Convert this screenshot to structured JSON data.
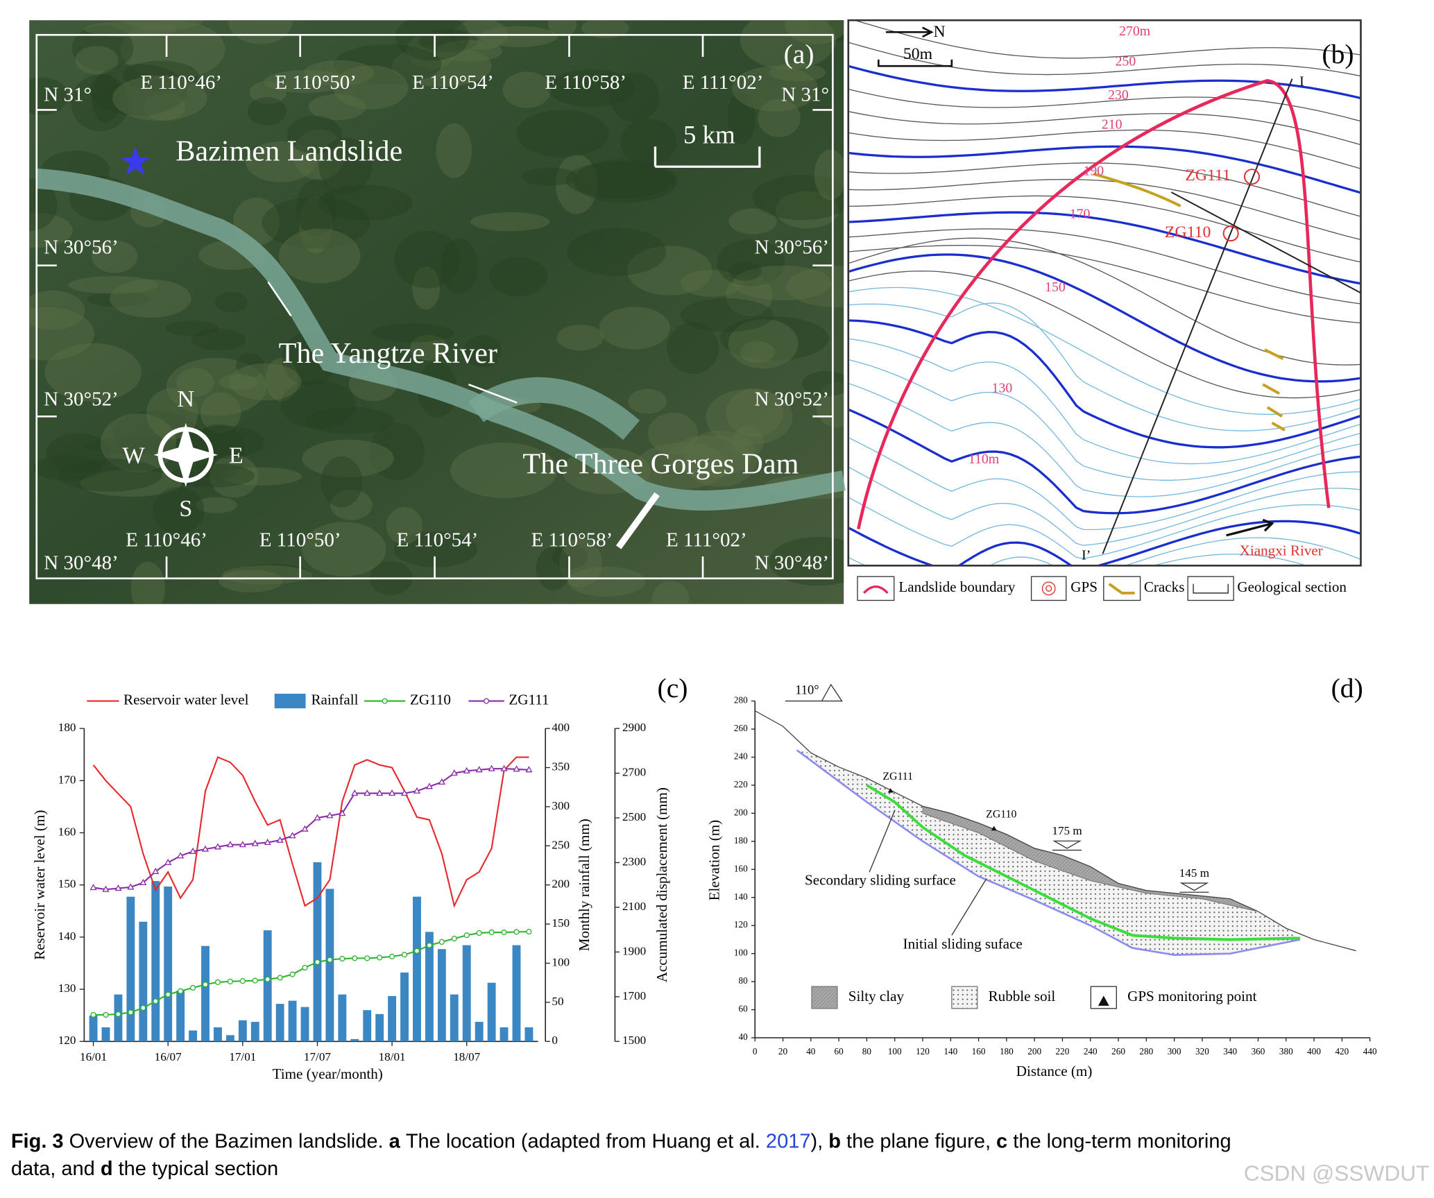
{
  "figure": {
    "a": {
      "label": "(a)",
      "top_lon": [
        "E 110°46’",
        "E 110°50’",
        "E 110°54’",
        "E 110°58’",
        "E 111°02’"
      ],
      "bottom_lon": [
        "E 110°46’",
        "E 110°50’",
        "E 110°54’",
        "E 110°58’",
        "E 111°02’"
      ],
      "left_lat": [
        "N 31°",
        "N 30°56’",
        "N 30°52’",
        "N 30°48’"
      ],
      "right_lat": [
        "N 31°",
        "N 30°56’",
        "N 30°52’",
        "N 30°48’"
      ],
      "scale": "5 km",
      "places": [
        "Bazimen Landslide",
        "The Yangtze River",
        "The Three Gorges Dam"
      ],
      "compass": [
        "N",
        "W",
        "E",
        "S"
      ]
    },
    "b": {
      "label": "(b)",
      "north": "N",
      "scale": "50m",
      "contours": [
        "270m",
        "250",
        "230",
        "210",
        "190",
        "170",
        "150",
        "130",
        "110m"
      ],
      "stations": [
        "ZG111",
        "ZG110"
      ],
      "section": [
        "I",
        "I’"
      ],
      "river": "Xiangxi River",
      "legend": [
        "Landslide boundary",
        "GPS",
        "Cracks",
        "Geological section"
      ]
    },
    "caption": {
      "fig": "Fig. 3",
      "text": "Overview of the Bazimen landslide.",
      "a": "a",
      "a_text": "The location (adapted from Huang et al.",
      "ref": "2017",
      "a_end": "),",
      "b": "b",
      "b_text": "the plane figure,",
      "c": "c",
      "c_text": "the long-term monitoring",
      "line2": "data, and",
      "d": "d",
      "d_text": "the typical section"
    },
    "watermark": "CSDN @SSWDUT"
  },
  "chart_data": [
    {
      "type": "combo",
      "label": "(c)",
      "x_label": "Time (year/month)",
      "y_label": "Reservoir water level (m)",
      "y2_label": "Monthly rainfall (mm)",
      "y3_label": "Accumulated displacement (mm)",
      "categories": [
        "16/01",
        null,
        null,
        null,
        null,
        null,
        "16/07",
        null,
        null,
        null,
        null,
        null,
        "17/01",
        null,
        null,
        null,
        null,
        null,
        "17/07",
        null,
        null,
        null,
        null,
        null,
        "18/01",
        null,
        null,
        null,
        null,
        null,
        "18/07",
        null,
        null,
        null,
        null,
        null
      ],
      "ylim": [
        120,
        180
      ],
      "yticks": [
        120,
        130,
        140,
        150,
        160,
        170,
        180
      ],
      "y2lim": [
        0,
        400
      ],
      "y2ticks": [
        0,
        50,
        100,
        150,
        200,
        250,
        300,
        350,
        400
      ],
      "y3lim": [
        1500,
        2900
      ],
      "y3ticks": [
        1500,
        1700,
        1900,
        2100,
        2300,
        2500,
        2700,
        2900
      ],
      "series": [
        {
          "name": "Reservoir water level",
          "kind": "line",
          "color": "#e8282b",
          "axis": "y",
          "values": [
            173,
            170,
            167.5,
            165,
            156,
            149,
            152.5,
            147.5,
            151,
            168,
            174.5,
            173.5,
            171,
            166,
            161.5,
            162.5,
            154,
            146,
            147.5,
            151,
            166,
            173,
            174,
            173,
            172.5,
            168,
            163,
            162.5,
            156,
            146,
            151,
            152.5,
            157,
            172,
            174.5,
            174.5
          ]
        },
        {
          "name": "Rainfall",
          "kind": "bar",
          "color": "#3a87c4",
          "axis": "y2",
          "values": [
            33,
            18,
            60,
            185,
            153,
            205,
            198,
            65,
            14,
            122,
            18,
            8,
            27,
            25,
            142,
            48,
            52,
            44,
            229,
            195,
            60,
            3,
            40,
            35,
            58,
            88,
            185,
            140,
            118,
            60,
            123,
            25,
            75,
            18,
            123,
            18
          ]
        },
        {
          "name": "ZG110",
          "kind": "line",
          "color": "#2cb52c",
          "axis": "y3",
          "marker": "circle",
          "values": [
            1619,
            1619,
            1622,
            1630,
            1650,
            1680,
            1710,
            1725,
            1740,
            1755,
            1765,
            1768,
            1770,
            1772,
            1778,
            1785,
            1800,
            1830,
            1855,
            1865,
            1870,
            1872,
            1872,
            1875,
            1880,
            1888,
            1905,
            1930,
            1945,
            1960,
            1975,
            1985,
            1988,
            1988,
            1990,
            1991
          ]
        },
        {
          "name": "ZG111",
          "kind": "line",
          "color": "#8a2ca8",
          "axis": "y3",
          "marker": "triangle",
          "values": [
            2188,
            2180,
            2185,
            2190,
            2210,
            2260,
            2300,
            2330,
            2350,
            2360,
            2370,
            2380,
            2380,
            2385,
            2390,
            2400,
            2420,
            2450,
            2500,
            2510,
            2520,
            2610,
            2610,
            2610,
            2610,
            2610,
            2620,
            2640,
            2660,
            2700,
            2710,
            2715,
            2720,
            2720,
            2718,
            2715
          ]
        }
      ]
    },
    {
      "type": "line",
      "label": "(d)",
      "x_label": "Distance (m)",
      "y_label": "Elevation (m)",
      "xlim": [
        0,
        440
      ],
      "xticks": [
        0,
        20,
        40,
        60,
        80,
        100,
        120,
        140,
        160,
        180,
        200,
        220,
        240,
        260,
        280,
        300,
        320,
        340,
        360,
        380,
        400,
        420,
        440
      ],
      "ylim": [
        40,
        280
      ],
      "yticks": [
        40,
        60,
        80,
        100,
        120,
        140,
        160,
        180,
        200,
        220,
        240,
        260,
        280
      ],
      "surface": {
        "x": [
          0,
          20,
          40,
          60,
          80,
          100,
          120,
          140,
          160,
          180,
          200,
          220,
          240,
          260,
          280,
          300,
          320,
          340,
          360,
          380,
          400,
          430
        ],
        "y": [
          273,
          262,
          243,
          233,
          225,
          215,
          205,
          200,
          193,
          185,
          175,
          170,
          162,
          150,
          145,
          143,
          141,
          139,
          130,
          118,
          110,
          102
        ]
      },
      "silty_clay_base": {
        "x": [
          120,
          160,
          200,
          240,
          280,
          320,
          360
        ],
        "y": [
          200,
          186,
          166,
          152,
          143,
          139,
          130
        ]
      },
      "series": [
        {
          "name": "Secondary sliding surface",
          "color": "#3ddc3d",
          "x": [
            80,
            100,
            120,
            150,
            200,
            240,
            270,
            300,
            340,
            390
          ],
          "y": [
            220,
            208,
            190,
            170,
            145,
            125,
            113,
            111,
            110,
            111
          ]
        },
        {
          "name": "Initial sliding suface",
          "color": "#8c8cf0",
          "x": [
            30,
            80,
            120,
            160,
            200,
            240,
            270,
            300,
            340,
            390
          ],
          "y": [
            245,
            208,
            180,
            155,
            138,
            120,
            104,
            99,
            100,
            110
          ]
        }
      ],
      "slope_angle": "110°",
      "water_levels": [
        {
          "label": "175 m",
          "value": 175
        },
        {
          "label": "145 m",
          "value": 145
        }
      ],
      "gps_points": [
        {
          "label": "ZG111",
          "x": 97,
          "y": 216
        },
        {
          "label": "ZG110",
          "x": 171,
          "y": 189
        }
      ],
      "legend": [
        "Silty clay",
        "Rubble soil",
        "GPS monitoring point"
      ]
    }
  ]
}
